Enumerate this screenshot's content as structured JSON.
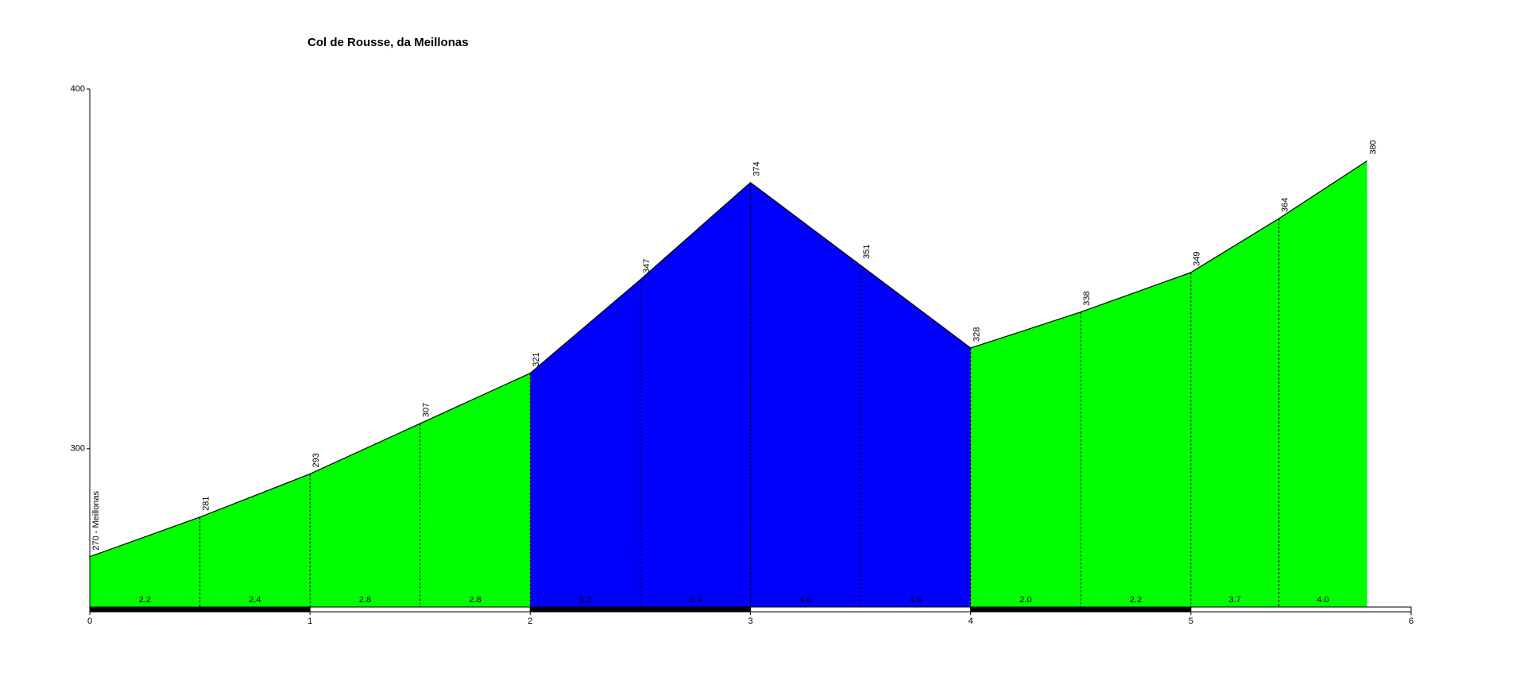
{
  "chart_data": {
    "type": "elevation-profile",
    "title": "Col de Rousse, da Meillonas",
    "x": [
      0,
      0.5,
      1,
      1.5,
      2,
      2.5,
      3,
      3.5,
      4,
      4.5,
      5,
      5.4,
      5.8
    ],
    "values": [
      270,
      281,
      293,
      307,
      321,
      347,
      374,
      351,
      328,
      338,
      349,
      364,
      380
    ],
    "value_labels": [
      "270 - Meillonas",
      "281",
      "293",
      "307",
      "321",
      "347",
      "374",
      "351",
      "328",
      "338",
      "349",
      "364",
      "380"
    ],
    "gradients": [
      2.2,
      2.4,
      2.8,
      2.8,
      5.2,
      5.4,
      4.6,
      4.6,
      2.0,
      2.2,
      3.7,
      4.0
    ],
    "gradient_labels": [
      "2.2",
      "2.4",
      "2.8",
      "2.8",
      "5.2",
      "5.4",
      "4.6",
      "4.6",
      "2.0",
      "2.2",
      "3.7",
      "4.0"
    ],
    "segment_colors": [
      "#00ff00",
      "#00ff00",
      "#00ff00",
      "#00ff00",
      "#0000ff",
      "#0000ff",
      "#0000ff",
      "#0000ff",
      "#00ff00",
      "#00ff00",
      "#00ff00",
      "#00ff00"
    ],
    "xlim": [
      0,
      6
    ],
    "xticks": [
      0,
      1,
      2,
      3,
      4,
      5,
      6
    ],
    "ylim": [
      256,
      400
    ],
    "yticks": [
      300,
      400
    ]
  }
}
